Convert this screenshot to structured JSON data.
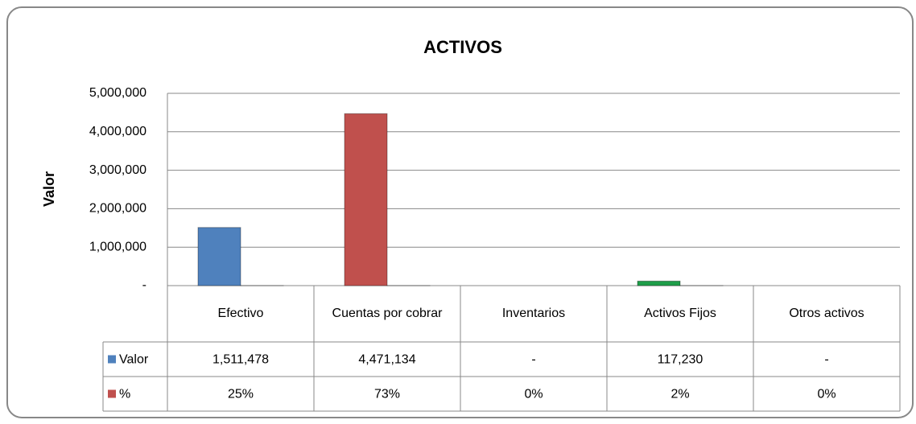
{
  "chart_data": {
    "type": "bar",
    "title": "ACTIVOS",
    "y_label": "Valor",
    "categories": [
      "Efectivo",
      "Cuentas por cobrar",
      "Inventarios",
      "Activos Fijos",
      "Otros activos"
    ],
    "series": [
      {
        "name": "Valor",
        "color": "#4f81bd",
        "colors": [
          "#4f81bd",
          "#c0504d",
          "#9bbb59",
          "#1f9e4a",
          "#8064a2"
        ],
        "values": [
          1511478,
          4471134,
          0,
          117230,
          0
        ],
        "value_labels": [
          "1,511,478",
          "4,471,134",
          "-",
          "117,230",
          "-"
        ]
      },
      {
        "name": "%",
        "color": "#c0504d",
        "values": [
          25,
          73,
          0,
          2,
          0
        ],
        "value_labels": [
          "25%",
          "73%",
          "0%",
          "2%",
          "0%"
        ]
      }
    ],
    "ylim": [
      0,
      5000000
    ],
    "yticks": [
      {
        "value": 0,
        "label": "-"
      },
      {
        "value": 1000000,
        "label": "1,000,000"
      },
      {
        "value": 2000000,
        "label": "2,000,000"
      },
      {
        "value": 3000000,
        "label": "3,000,000"
      },
      {
        "value": 4000000,
        "label": "4,000,000"
      },
      {
        "value": 5000000,
        "label": "5,000,000"
      }
    ],
    "grid": true,
    "data_table": true
  }
}
